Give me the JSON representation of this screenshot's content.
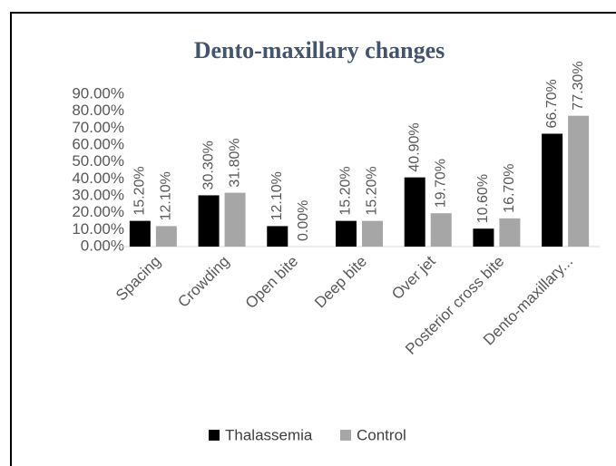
{
  "chart_data": {
    "type": "bar",
    "title": "Dento-maxillary changes",
    "categories": [
      "Spacing",
      "Crowding",
      "Open bite",
      "Deep bite",
      "Over jet",
      "Posterior cross bite",
      "Dento-maxillary..."
    ],
    "series": [
      {
        "name": "Thalassemia",
        "color": "#000000",
        "values": [
          15.2,
          30.3,
          12.1,
          15.2,
          40.9,
          10.6,
          66.7
        ],
        "value_labels": [
          "15.20%",
          "30.30%",
          "12.10%",
          "15.20%",
          "40.90%",
          "10.60%",
          "66.70%"
        ]
      },
      {
        "name": "Control",
        "color": "#a6a6a6",
        "values": [
          12.1,
          31.8,
          0,
          15.2,
          19.7,
          16.7,
          77.3
        ],
        "value_labels": [
          "12.10%",
          "31.80%",
          "0.00%",
          "15.20%",
          "19.70%",
          "16.70%",
          "77.30%"
        ]
      }
    ],
    "ylim": [
      0,
      90
    ],
    "yticks": [
      {
        "value": 0,
        "label": "0.00%"
      },
      {
        "value": 10,
        "label": "10.00%"
      },
      {
        "value": 20,
        "label": "20.00%"
      },
      {
        "value": 30,
        "label": "30.00%"
      },
      {
        "value": 40,
        "label": "40.00%"
      },
      {
        "value": 50,
        "label": "50.00%"
      },
      {
        "value": 60,
        "label": "60.00%"
      },
      {
        "value": 70,
        "label": "70.00%"
      },
      {
        "value": 80,
        "label": "80.00%"
      },
      {
        "value": 90,
        "label": "90.00%"
      }
    ],
    "legend": "bottom"
  }
}
